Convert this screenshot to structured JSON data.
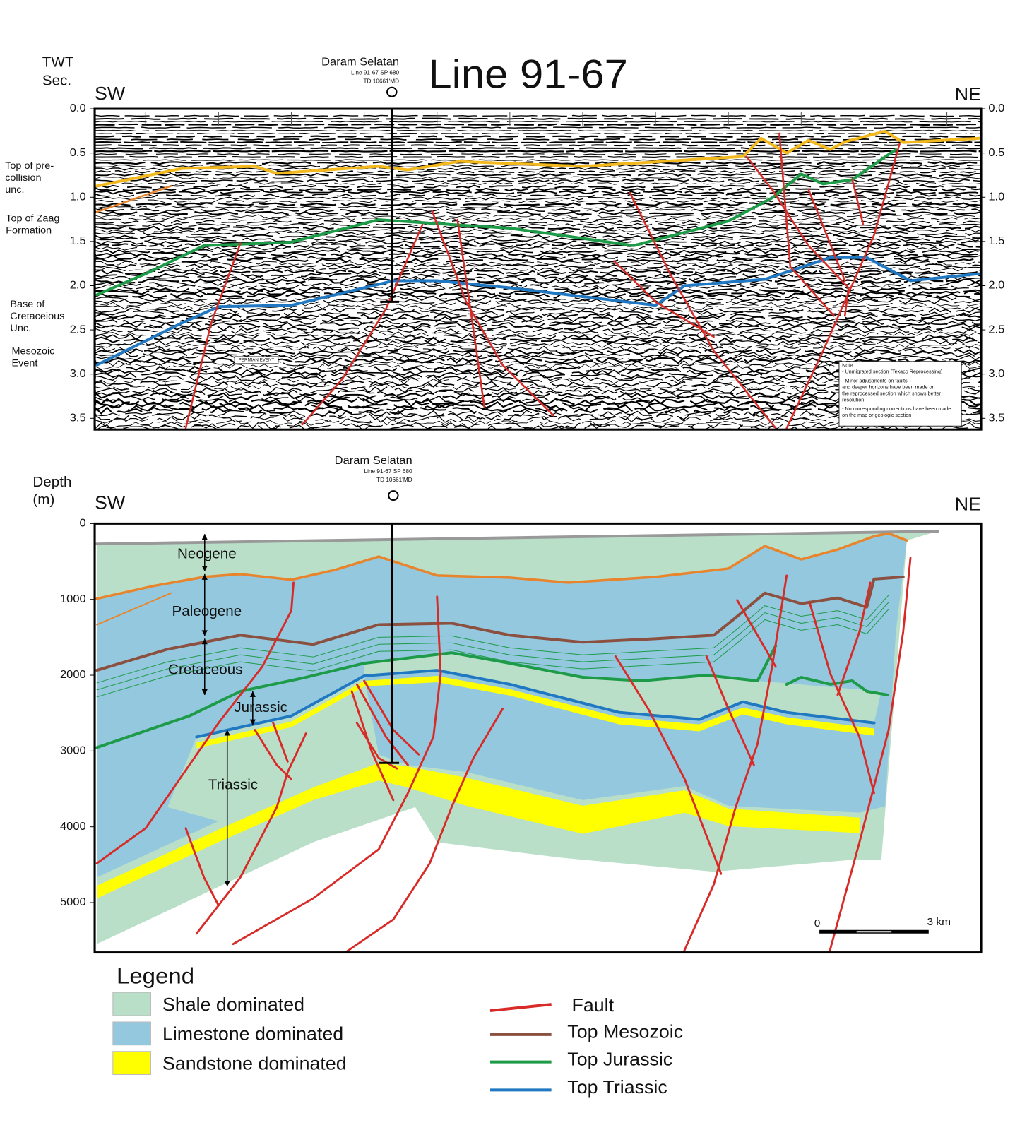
{
  "seismic_section": {
    "title": "Line 91-67",
    "axis_label": [
      "TWT",
      "Sec."
    ],
    "left_end": "SW",
    "right_end": "NE",
    "well": {
      "name": "Daram Selatan",
      "line": "Line 91-67 SP 680",
      "td": "TD 10661'MD"
    },
    "ticks": [
      {
        "value": 0,
        "label": "0.0"
      },
      {
        "value": 0.5,
        "label": "0.5"
      },
      {
        "value": 1,
        "label": "1.0"
      },
      {
        "value": 1.5,
        "label": "1.5"
      },
      {
        "value": 2,
        "label": "2.0"
      },
      {
        "value": 2.5,
        "label": "2.5"
      },
      {
        "value": 3,
        "label": "3.0"
      },
      {
        "value": 3.5,
        "label": "3.5"
      }
    ],
    "horizon_labels": [
      [
        "Top of pre-",
        "collision",
        "unc."
      ],
      [
        "Top of Zaag",
        "Formation"
      ],
      [
        "Base of",
        "Cretaceious",
        "Unc."
      ],
      [
        "Mesozoic",
        "Event"
      ]
    ],
    "event_label": "PERMIAN EVENT",
    "note": [
      "Note",
      "- Unmigrated section (Texaco Reprocessing)",
      "- Minor adjustments on faults",
      "and deeper horizons have been made on",
      "the reprocessed section which shows better",
      "resolution",
      "- No corresponding corrections have been made",
      "on the map or geologic section"
    ]
  },
  "geologic_section": {
    "axis_label": [
      "Depth",
      "(m)"
    ],
    "left_end": "SW",
    "right_end": "NE",
    "well": {
      "name": "Daram Selatan",
      "line": "Line 91-67 SP 680",
      "td": "TD 10661'MD"
    },
    "ticks": [
      0,
      1000,
      2000,
      3000,
      4000,
      5000
    ],
    "intervals": [
      "Neogene",
      "Paleogene",
      "Cretaceous",
      "Jurassic",
      "Triassic"
    ],
    "scale_bar": [
      "0",
      "3 km"
    ]
  },
  "legend": {
    "title": "Legend",
    "fills": [
      "Shale dominated",
      "Limestone dominated",
      "Sandstone dominated"
    ],
    "lines": [
      "Fault",
      "Top Mesozoic",
      "Top Jurassic",
      "Top Triassic"
    ]
  }
}
